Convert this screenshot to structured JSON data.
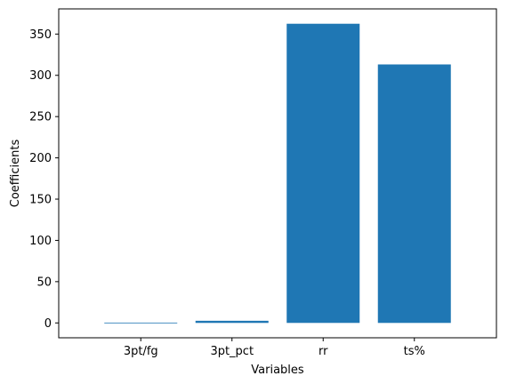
{
  "chart_data": {
    "type": "bar",
    "title": "",
    "xlabel": "Variables",
    "ylabel": "Coefficients",
    "categories": [
      "3pt/fg",
      "3pt_pct",
      "rr",
      "ts%"
    ],
    "values": [
      0.4,
      2.6,
      362.5,
      313.2
    ],
    "ylim": [
      -18.0,
      380.5
    ],
    "yticks": [
      0,
      50,
      100,
      150,
      200,
      250,
      300,
      350
    ],
    "ytick_labels": [
      "0",
      "50",
      "100",
      "150",
      "200",
      "250",
      "300",
      "350"
    ],
    "grid": false,
    "legend": "none",
    "bar_color": "#1f77b4",
    "axis_color": "#000000"
  }
}
